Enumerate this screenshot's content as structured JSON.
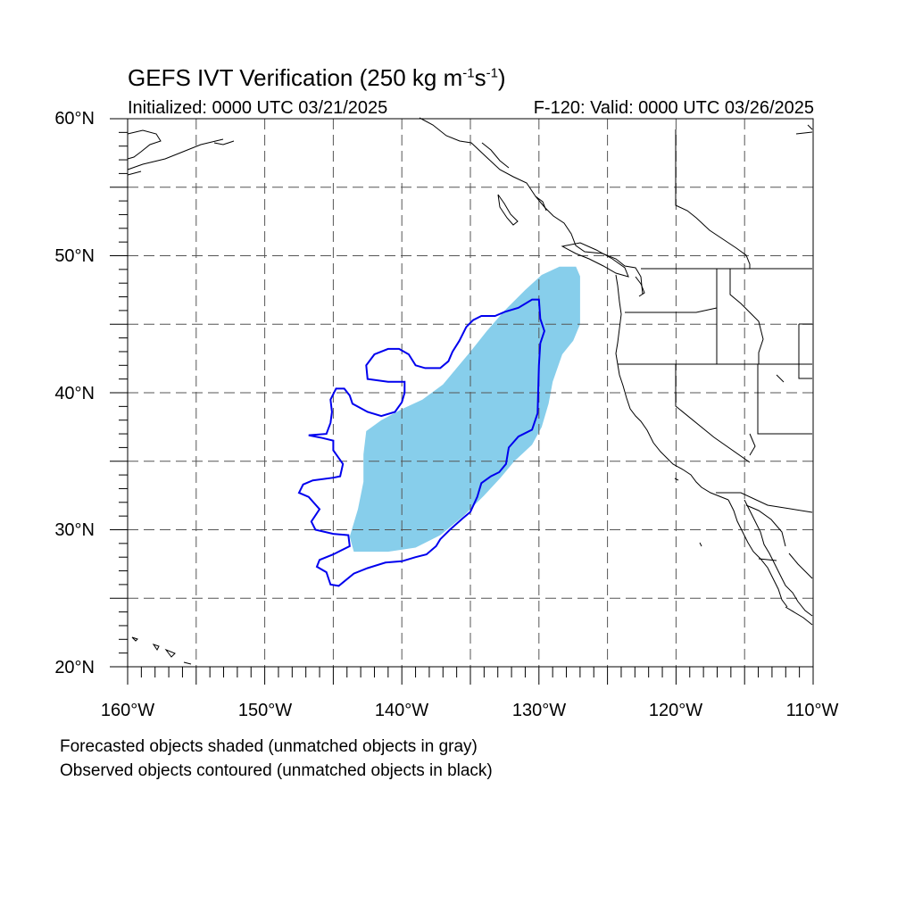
{
  "title": {
    "text": "GEFS IVT Verification (250 kg m",
    "sup1": "-1",
    "mid": "s",
    "sup2": "-1",
    "end": ")"
  },
  "initialized": "Initialized: 0000 UTC 03/21/2025",
  "valid": "F-120: Valid: 0000 UTC 03/26/2025",
  "lat_labels": [
    "60°N",
    "50°N",
    "40°N",
    "30°N",
    "20°N"
  ],
  "lon_labels": [
    "160°W",
    "150°W",
    "140°W",
    "130°W",
    "120°W",
    "110°W"
  ],
  "notes": [
    "Forecasted objects shaded (unmatched objects in gray)",
    "Observed objects contoured (unmatched objects in black)"
  ],
  "colors": {
    "forecast_fill": "#87ceeb",
    "observed_contour": "#0000ee",
    "coastline": "#000000",
    "grid": "#555555"
  },
  "map": {
    "lon_range": [
      -160,
      -110
    ],
    "lat_range": [
      20,
      60
    ],
    "grid_lon_step": 5,
    "grid_lat_step": 5,
    "forecast_object": [
      [
        -128.5,
        49.2
      ],
      [
        -127.3,
        49.2
      ],
      [
        -127.0,
        48.5
      ],
      [
        -127.0,
        45.0
      ],
      [
        -127.5,
        43.8
      ],
      [
        -128.3,
        42.8
      ],
      [
        -129.0,
        40.8
      ],
      [
        -129.3,
        39.2
      ],
      [
        -129.8,
        37.5
      ],
      [
        -130.5,
        36.2
      ],
      [
        -131.8,
        35.0
      ],
      [
        -132.8,
        33.8
      ],
      [
        -134.0,
        32.5
      ],
      [
        -135.5,
        31.0
      ],
      [
        -137.2,
        29.6
      ],
      [
        -139.0,
        28.7
      ],
      [
        -141.0,
        28.4
      ],
      [
        -143.5,
        28.4
      ],
      [
        -143.8,
        29.5
      ],
      [
        -143.2,
        31.5
      ],
      [
        -142.8,
        33.5
      ],
      [
        -142.8,
        35.5
      ],
      [
        -142.6,
        37.2
      ],
      [
        -141.5,
        38.0
      ],
      [
        -140.0,
        38.8
      ],
      [
        -138.5,
        39.5
      ],
      [
        -137.0,
        40.6
      ],
      [
        -136.0,
        41.8
      ],
      [
        -135.0,
        43.0
      ],
      [
        -133.8,
        44.5
      ],
      [
        -132.5,
        46.0
      ],
      [
        -131.0,
        47.5
      ],
      [
        -129.8,
        48.6
      ]
    ],
    "observed_object": [
      [
        -130.0,
        46.8
      ],
      [
        -129.9,
        45.4
      ],
      [
        -129.6,
        44.5
      ],
      [
        -129.9,
        43.6
      ],
      [
        -130.0,
        42.0
      ],
      [
        -130.1,
        38.5
      ],
      [
        -130.5,
        37.3
      ],
      [
        -131.5,
        36.8
      ],
      [
        -132.2,
        36.0
      ],
      [
        -132.4,
        34.8
      ],
      [
        -132.9,
        34.2
      ],
      [
        -133.5,
        33.9
      ],
      [
        -134.2,
        33.4
      ],
      [
        -134.5,
        32.4
      ],
      [
        -135.0,
        31.3
      ],
      [
        -135.6,
        30.8
      ],
      [
        -136.5,
        30.0
      ],
      [
        -137.2,
        29.3
      ],
      [
        -137.5,
        28.8
      ],
      [
        -138.2,
        28.2
      ],
      [
        -139.0,
        28.0
      ],
      [
        -140.0,
        27.7
      ],
      [
        -141.2,
        27.6
      ],
      [
        -142.5,
        27.2
      ],
      [
        -143.5,
        26.8
      ],
      [
        -144.6,
        25.9
      ],
      [
        -145.2,
        26.0
      ],
      [
        -145.5,
        26.9
      ],
      [
        -146.2,
        27.3
      ],
      [
        -146.0,
        27.8
      ],
      [
        -145.0,
        28.2
      ],
      [
        -143.8,
        28.8
      ],
      [
        -143.9,
        29.6
      ],
      [
        -145.0,
        29.7
      ],
      [
        -146.3,
        30.0
      ],
      [
        -146.6,
        30.6
      ],
      [
        -146.0,
        31.5
      ],
      [
        -146.8,
        32.4
      ],
      [
        -147.5,
        32.7
      ],
      [
        -147.2,
        33.3
      ],
      [
        -146.5,
        33.6
      ],
      [
        -145.0,
        33.8
      ],
      [
        -144.5,
        33.9
      ],
      [
        -144.3,
        34.8
      ],
      [
        -145.0,
        35.8
      ],
      [
        -145.0,
        36.5
      ],
      [
        -145.8,
        36.7
      ],
      [
        -146.8,
        36.9
      ],
      [
        -145.5,
        37.0
      ],
      [
        -145.2,
        37.8
      ],
      [
        -145.1,
        38.6
      ],
      [
        -145.2,
        39.5
      ],
      [
        -144.8,
        40.3
      ],
      [
        -144.2,
        40.3
      ],
      [
        -143.8,
        39.8
      ],
      [
        -143.6,
        39.2
      ],
      [
        -142.5,
        38.6
      ],
      [
        -141.5,
        38.3
      ],
      [
        -140.5,
        38.6
      ],
      [
        -140.0,
        39.3
      ],
      [
        -139.8,
        40.0
      ],
      [
        -139.8,
        40.8
      ],
      [
        -141.0,
        40.8
      ],
      [
        -142.5,
        41.0
      ],
      [
        -142.6,
        42.0
      ],
      [
        -142.0,
        42.8
      ],
      [
        -141.0,
        43.2
      ],
      [
        -140.2,
        43.2
      ],
      [
        -139.5,
        42.8
      ],
      [
        -139.0,
        42.0
      ],
      [
        -138.3,
        41.8
      ],
      [
        -137.2,
        41.8
      ],
      [
        -136.6,
        42.3
      ],
      [
        -136.3,
        43.0
      ],
      [
        -135.8,
        43.8
      ],
      [
        -135.3,
        44.8
      ],
      [
        -134.8,
        45.3
      ],
      [
        -134.2,
        45.6
      ],
      [
        -133.2,
        45.6
      ],
      [
        -132.5,
        45.9
      ],
      [
        -131.5,
        46.2
      ],
      [
        -130.5,
        46.8
      ]
    ]
  }
}
